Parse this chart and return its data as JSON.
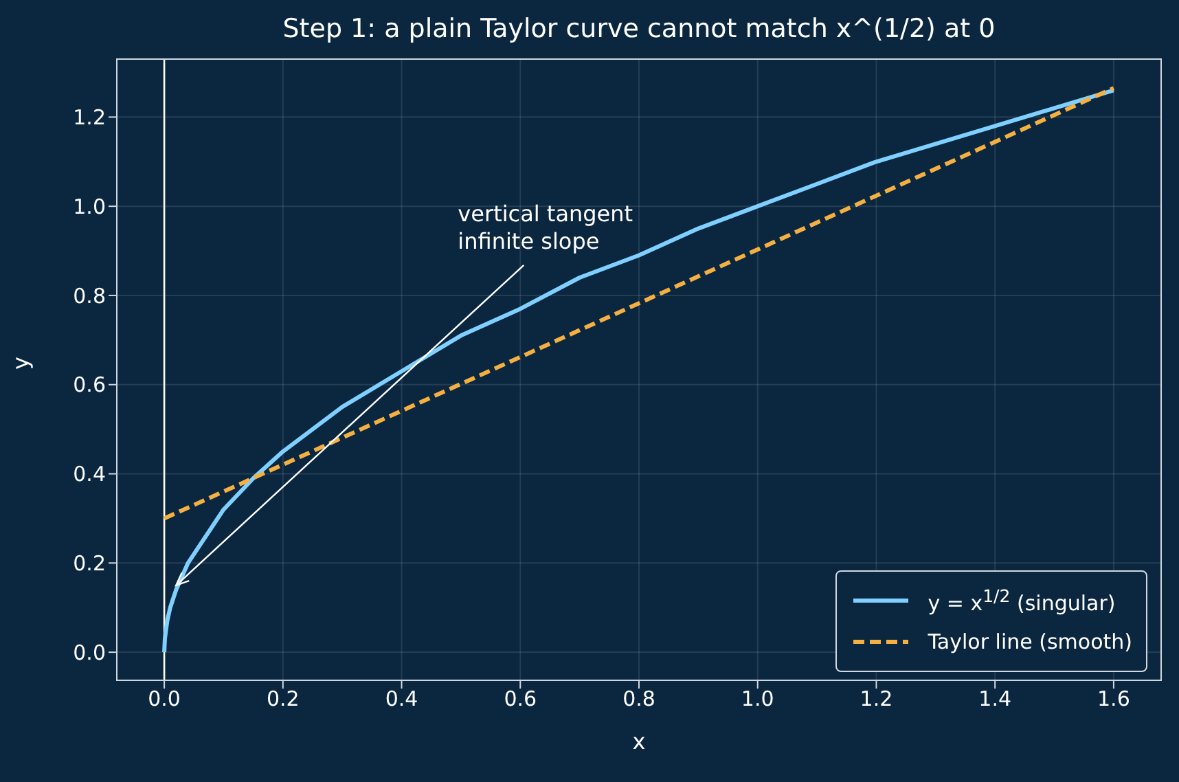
{
  "chart_data": {
    "type": "line",
    "title": "Step 1: a plain Taylor curve cannot match x^(1/2) at 0",
    "xlabel": "x",
    "ylabel": "y",
    "xlim": [
      -0.08,
      1.68
    ],
    "ylim": [
      -0.063,
      1.33
    ],
    "xticks": [
      {
        "value": 0,
        "label": "0.0"
      },
      {
        "value": 0.2,
        "label": "0.2"
      },
      {
        "value": 0.4,
        "label": "0.4"
      },
      {
        "value": 0.6,
        "label": "0.6"
      },
      {
        "value": 0.8,
        "label": "0.8"
      },
      {
        "value": 1,
        "label": "1.0"
      },
      {
        "value": 1.2,
        "label": "1.2"
      },
      {
        "value": 1.4,
        "label": "1.4"
      },
      {
        "value": 1.6,
        "label": "1.6"
      }
    ],
    "yticks": [
      {
        "value": 0,
        "label": "0.0"
      },
      {
        "value": 0.2,
        "label": "0.2"
      },
      {
        "value": 0.4,
        "label": "0.4"
      },
      {
        "value": 0.6,
        "label": "0.6"
      },
      {
        "value": 0.8,
        "label": "0.8"
      },
      {
        "value": 1,
        "label": "1.0"
      },
      {
        "value": 1.2,
        "label": "1.2"
      }
    ],
    "grid": true,
    "legend": "bottom right",
    "marker": "none",
    "series": [
      {
        "name": "y = x$^{1/2}$ (singular)",
        "color": "#7fd0ff",
        "line_style": "solid",
        "x": [
          0,
          0.001,
          0.005,
          0.01,
          0.02,
          0.04,
          0.06,
          0.1,
          0.15,
          0.2,
          0.3,
          0.4,
          0.5,
          0.6,
          0.7,
          0.8,
          0.9,
          1.0,
          1.1,
          1.2,
          1.3,
          1.4,
          1.5,
          1.6
        ],
        "values": [
          0,
          0.03,
          0.07,
          0.1,
          0.14,
          0.2,
          0.24,
          0.32,
          0.39,
          0.45,
          0.55,
          0.63,
          0.71,
          0.77,
          0.84,
          0.89,
          0.95,
          1.0,
          1.05,
          1.1,
          1.14,
          1.18,
          1.22,
          1.26
        ]
      },
      {
        "name": "Taylor line (smooth)",
        "color": "#f5b041",
        "line_style": "dashed",
        "x": [
          0,
          1.6
        ],
        "values": [
          0.3,
          1.265
        ]
      }
    ],
    "ref_lines": [
      {
        "axis": "x",
        "value": 0,
        "color": "#ffffff"
      }
    ],
    "annotations": [
      {
        "text": "vertical tangent\ninfinite slope",
        "x": 0.02,
        "y": 0.15
      }
    ]
  }
}
